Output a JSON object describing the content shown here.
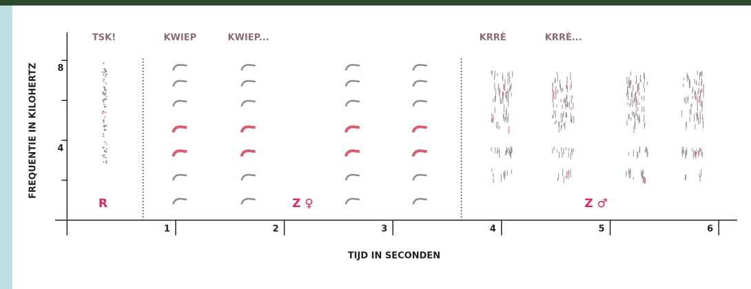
{
  "chart_data": {
    "type": "spectrogram",
    "xlabel": "TIJD IN SECONDEN",
    "ylabel": "FREQUENTIE IN KILOHERTZ",
    "xlim": [
      -0.11,
      6.17
    ],
    "xticks": [
      1,
      2,
      3,
      4,
      5,
      6
    ],
    "xminorticks": [
      0
    ],
    "ylim": [
      0,
      9.4
    ],
    "yticks": [
      4,
      8
    ],
    "yminorticks": [
      2,
      6
    ],
    "separators": [
      0.7,
      3.63
    ],
    "call_labels": [
      {
        "text": "TSK!",
        "x": 0.34
      },
      {
        "text": "KWIEP",
        "x": 1.04
      },
      {
        "text": "KWIEP...",
        "x": 1.67
      },
      {
        "text": "KRRÈ",
        "x": 3.92
      },
      {
        "text": "KRRÈ...",
        "x": 4.57
      }
    ],
    "group_labels": [
      {
        "text": "R",
        "x": 0.33
      },
      {
        "text": "Z ♀",
        "x": 2.17
      },
      {
        "text": "Z ♂",
        "x": 4.87
      }
    ],
    "tsk_calls": [
      0.34
    ],
    "female_calls": [
      1.04,
      1.67,
      2.63,
      3.25
    ],
    "male_calls": [
      4.0,
      4.57,
      5.25,
      5.76
    ],
    "label_color": "#8b6b6e",
    "group_color": "#e0245e",
    "sound_color": "#6e6265",
    "accent_color": "#c8283e"
  }
}
